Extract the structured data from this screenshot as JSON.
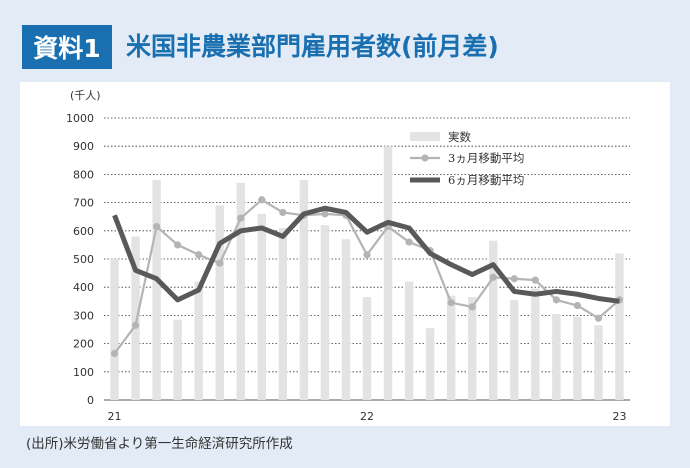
{
  "header": {
    "badge": "資料1",
    "title": "米国非農業部門雇用者数(前月差)"
  },
  "source": "(出所)米労働省より第一生命経済研究所作成",
  "colors": {
    "brand": "#1a6fb0",
    "background": "#e3ecf6",
    "bar": "#e3e3e3",
    "ma3": "#b4b4b4",
    "ma6": "#595959"
  },
  "chart_data": {
    "type": "bar",
    "unit_label": "(千人)",
    "ylim": [
      0,
      1000
    ],
    "y_ticks": [
      0,
      100,
      200,
      300,
      400,
      500,
      600,
      700,
      800,
      900,
      1000
    ],
    "x_tick_labels": [
      {
        "index": 0,
        "label": "21"
      },
      {
        "index": 12,
        "label": "22"
      },
      {
        "index": 24,
        "label": "23"
      }
    ],
    "grid": true,
    "legend_position": "top-right",
    "series": [
      {
        "name": "実数",
        "type": "bar",
        "values": [
          500,
          580,
          780,
          285,
          420,
          690,
          770,
          660,
          610,
          780,
          620,
          570,
          365,
          900,
          420,
          255,
          370,
          365,
          565,
          355,
          395,
          305,
          295,
          265,
          520
        ]
      },
      {
        "name": "3ヵ月移動平均",
        "type": "line",
        "values": [
          165,
          265,
          615,
          550,
          515,
          485,
          645,
          710,
          665,
          655,
          660,
          655,
          515,
          615,
          560,
          530,
          345,
          330,
          435,
          430,
          425,
          355,
          335,
          290,
          355
        ]
      },
      {
        "name": "6ヵ月移動平均",
        "type": "line",
        "values": [
          655,
          460,
          430,
          355,
          390,
          555,
          600,
          610,
          580,
          660,
          680,
          665,
          595,
          630,
          610,
          520,
          480,
          445,
          480,
          385,
          375,
          385,
          375,
          360,
          350
        ]
      }
    ]
  }
}
